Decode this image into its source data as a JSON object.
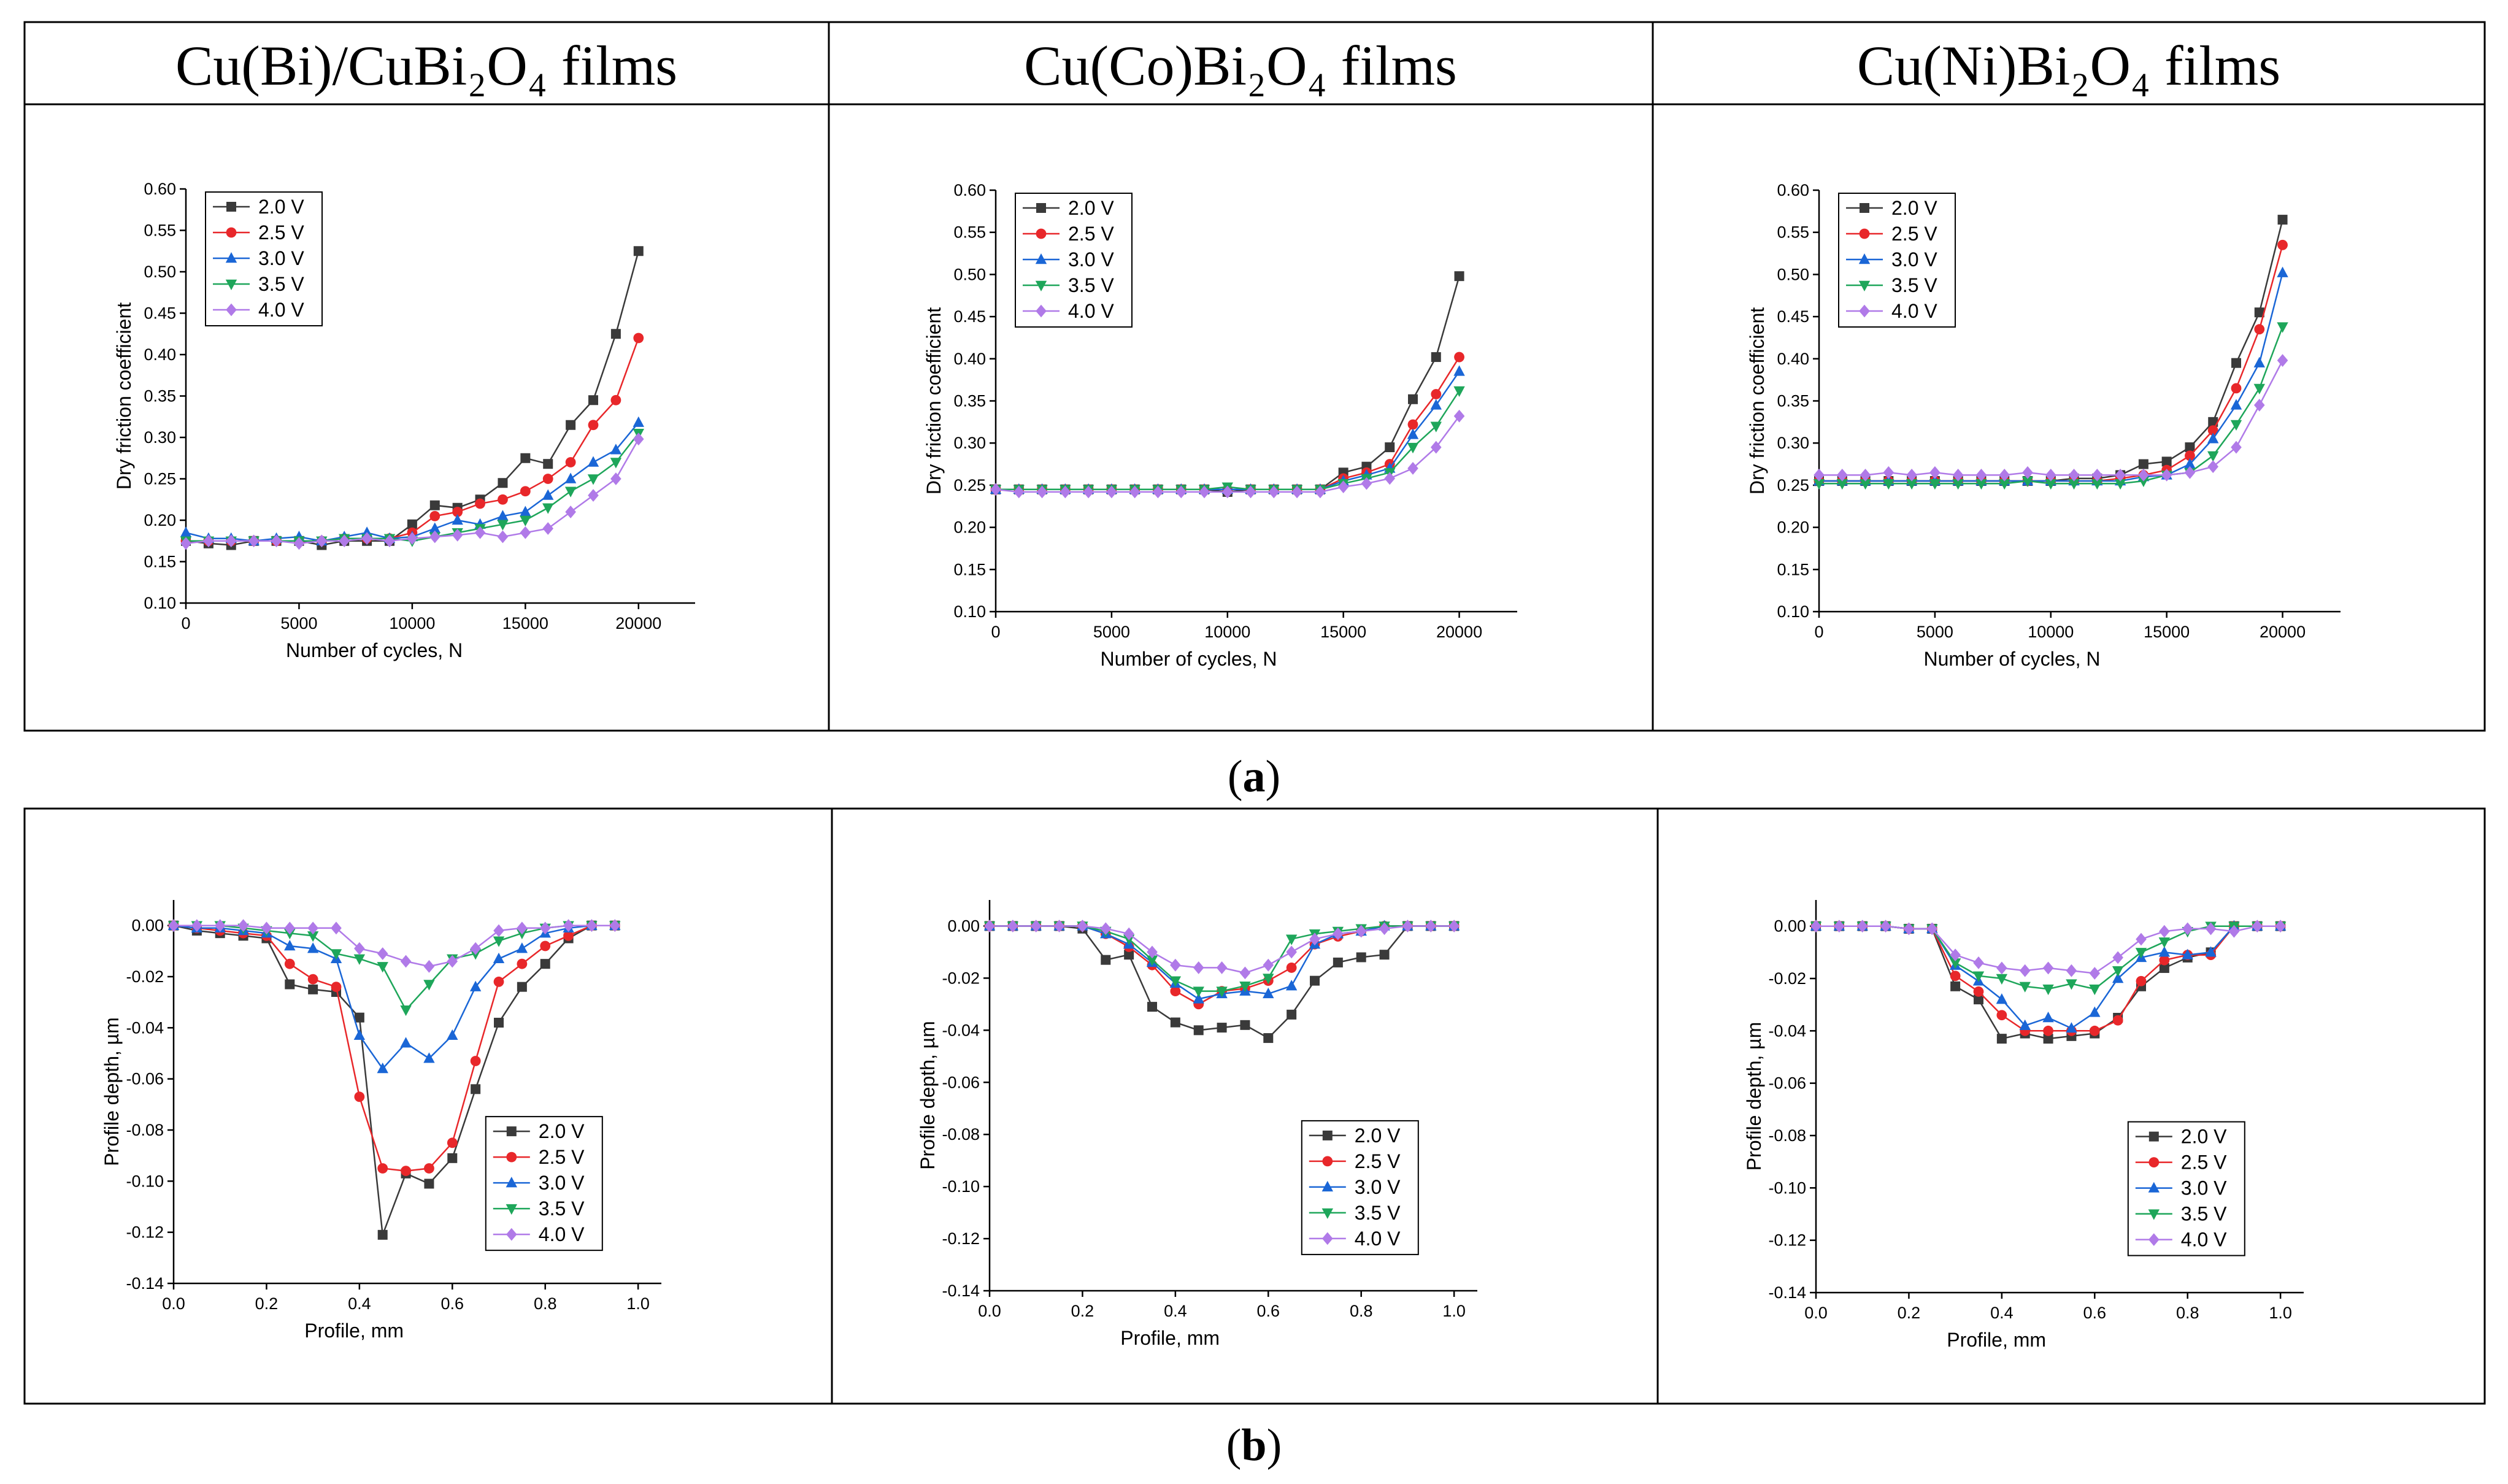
{
  "headers": [
    "Cu(Bi)/CuBi₂O₄ films",
    "Cu(Co)Bi₂O₄ films",
    "Cu(Ni)Bi₂O₄ films"
  ],
  "captions": {
    "a": "a",
    "b": "b"
  },
  "colors": {
    "2.0 V": "#3a3a3a",
    "2.5 V": "#e8272a",
    "3.0 V": "#1a66d6",
    "3.5 V": "#1ea65a",
    "4.0 V": "#b07ae8"
  },
  "chart_data": [
    {
      "id": "a1",
      "type": "line",
      "xlabel": "Number of cycles, N",
      "ylabel": "Dry friction coefficient",
      "xlim": [
        0,
        22500
      ],
      "ylim": [
        0.1,
        0.6
      ],
      "xticks": [
        0,
        5000,
        10000,
        15000,
        20000
      ],
      "yticks": [
        0.1,
        0.15,
        0.2,
        0.25,
        0.3,
        0.35,
        0.4,
        0.45,
        0.5,
        0.55,
        0.6
      ],
      "yformat": 2,
      "legend": "top-left",
      "x": [
        0,
        1000,
        2000,
        3000,
        4000,
        5000,
        6000,
        7000,
        8000,
        9000,
        10000,
        11000,
        12000,
        13000,
        14000,
        15000,
        16000,
        17000,
        18000,
        19000,
        20000
      ],
      "series": [
        {
          "name": "2.0 V",
          "values": [
            0.175,
            0.172,
            0.17,
            0.175,
            0.175,
            0.175,
            0.17,
            0.175,
            0.175,
            0.175,
            0.195,
            0.218,
            0.215,
            0.225,
            0.245,
            0.275,
            0.268,
            0.315,
            0.345,
            0.425,
            0.525
          ]
        },
        {
          "name": "2.5 V",
          "values": [
            0.175,
            0.175,
            0.175,
            0.175,
            0.175,
            0.175,
            0.175,
            0.178,
            0.178,
            0.178,
            0.185,
            0.205,
            0.21,
            0.22,
            0.225,
            0.235,
            0.25,
            0.27,
            0.315,
            0.345,
            0.42
          ]
        },
        {
          "name": "3.0 V",
          "values": [
            0.185,
            0.178,
            0.178,
            0.175,
            0.178,
            0.18,
            0.175,
            0.18,
            0.185,
            0.178,
            0.18,
            0.19,
            0.2,
            0.195,
            0.205,
            0.21,
            0.23,
            0.25,
            0.27,
            0.285,
            0.318
          ]
        },
        {
          "name": "3.5 V",
          "values": [
            0.175,
            0.175,
            0.175,
            0.175,
            0.175,
            0.175,
            0.175,
            0.178,
            0.178,
            0.178,
            0.175,
            0.18,
            0.185,
            0.19,
            0.195,
            0.2,
            0.215,
            0.235,
            0.25,
            0.27,
            0.305
          ]
        },
        {
          "name": "4.0 V",
          "values": [
            0.172,
            0.175,
            0.175,
            0.175,
            0.175,
            0.172,
            0.175,
            0.175,
            0.178,
            0.175,
            0.178,
            0.18,
            0.182,
            0.185,
            0.18,
            0.185,
            0.19,
            0.21,
            0.23,
            0.25,
            0.298
          ]
        }
      ]
    },
    {
      "id": "a2",
      "type": "line",
      "xlabel": "Number of cycles, N",
      "ylabel": "Dry friction coefficient",
      "xlim": [
        0,
        22500
      ],
      "ylim": [
        0.1,
        0.6
      ],
      "xticks": [
        0,
        5000,
        10000,
        15000,
        20000
      ],
      "yticks": [
        0.1,
        0.15,
        0.2,
        0.25,
        0.3,
        0.35,
        0.4,
        0.45,
        0.5,
        0.55,
        0.6
      ],
      "yformat": 2,
      "legend": "top-left",
      "x": [
        0,
        1000,
        2000,
        3000,
        4000,
        5000,
        6000,
        7000,
        8000,
        9000,
        10000,
        11000,
        12000,
        13000,
        14000,
        15000,
        16000,
        17000,
        18000,
        19000,
        20000
      ],
      "series": [
        {
          "name": "2.0 V",
          "values": [
            0.245,
            0.245,
            0.245,
            0.245,
            0.245,
            0.245,
            0.245,
            0.245,
            0.245,
            0.245,
            0.242,
            0.245,
            0.245,
            0.245,
            0.245,
            0.265,
            0.272,
            0.295,
            0.352,
            0.402,
            0.498
          ]
        },
        {
          "name": "2.5 V",
          "values": [
            0.245,
            0.245,
            0.245,
            0.245,
            0.245,
            0.245,
            0.245,
            0.245,
            0.245,
            0.245,
            0.245,
            0.245,
            0.245,
            0.245,
            0.245,
            0.258,
            0.265,
            0.275,
            0.322,
            0.358,
            0.402
          ]
        },
        {
          "name": "3.0 V",
          "values": [
            0.245,
            0.245,
            0.245,
            0.245,
            0.245,
            0.245,
            0.245,
            0.245,
            0.245,
            0.245,
            0.245,
            0.245,
            0.245,
            0.245,
            0.245,
            0.255,
            0.262,
            0.27,
            0.31,
            0.345,
            0.385
          ]
        },
        {
          "name": "3.5 V",
          "values": [
            0.245,
            0.245,
            0.245,
            0.245,
            0.245,
            0.245,
            0.245,
            0.245,
            0.245,
            0.245,
            0.248,
            0.245,
            0.245,
            0.245,
            0.245,
            0.252,
            0.258,
            0.265,
            0.295,
            0.32,
            0.362
          ]
        },
        {
          "name": "4.0 V",
          "values": [
            0.245,
            0.242,
            0.242,
            0.242,
            0.242,
            0.242,
            0.242,
            0.242,
            0.242,
            0.242,
            0.242,
            0.242,
            0.242,
            0.242,
            0.242,
            0.248,
            0.252,
            0.258,
            0.27,
            0.295,
            0.332
          ]
        }
      ]
    },
    {
      "id": "a3",
      "type": "line",
      "xlabel": "Number of cycles, N",
      "ylabel": "Dry friction coefficient",
      "xlim": [
        0,
        22500
      ],
      "ylim": [
        0.1,
        0.6
      ],
      "xticks": [
        0,
        5000,
        10000,
        15000,
        20000
      ],
      "yticks": [
        0.1,
        0.15,
        0.2,
        0.25,
        0.3,
        0.35,
        0.4,
        0.45,
        0.5,
        0.55,
        0.6
      ],
      "yformat": 2,
      "legend": "top-left",
      "x": [
        0,
        1000,
        2000,
        3000,
        4000,
        5000,
        6000,
        7000,
        8000,
        9000,
        10000,
        11000,
        12000,
        13000,
        14000,
        15000,
        16000,
        17000,
        18000,
        19000,
        20000
      ],
      "series": [
        {
          "name": "2.0 V",
          "values": [
            0.255,
            0.255,
            0.255,
            0.255,
            0.255,
            0.255,
            0.255,
            0.255,
            0.255,
            0.255,
            0.255,
            0.258,
            0.258,
            0.262,
            0.275,
            0.278,
            0.295,
            0.325,
            0.395,
            0.455,
            0.565
          ]
        },
        {
          "name": "2.5 V",
          "values": [
            0.255,
            0.255,
            0.255,
            0.255,
            0.255,
            0.255,
            0.255,
            0.255,
            0.255,
            0.255,
            0.255,
            0.255,
            0.255,
            0.258,
            0.262,
            0.268,
            0.285,
            0.315,
            0.365,
            0.435,
            0.535
          ]
        },
        {
          "name": "3.0 V",
          "values": [
            0.255,
            0.255,
            0.255,
            0.255,
            0.255,
            0.255,
            0.255,
            0.255,
            0.255,
            0.255,
            0.255,
            0.255,
            0.255,
            0.255,
            0.26,
            0.262,
            0.275,
            0.305,
            0.345,
            0.395,
            0.502
          ]
        },
        {
          "name": "3.5 V",
          "values": [
            0.252,
            0.252,
            0.252,
            0.252,
            0.252,
            0.252,
            0.252,
            0.252,
            0.252,
            0.255,
            0.252,
            0.252,
            0.252,
            0.252,
            0.255,
            0.262,
            0.265,
            0.285,
            0.322,
            0.365,
            0.438
          ]
        },
        {
          "name": "4.0 V",
          "values": [
            0.262,
            0.262,
            0.262,
            0.265,
            0.262,
            0.265,
            0.262,
            0.262,
            0.262,
            0.265,
            0.262,
            0.262,
            0.262,
            0.262,
            0.262,
            0.262,
            0.265,
            0.272,
            0.295,
            0.345,
            0.398
          ]
        }
      ]
    },
    {
      "id": "b1",
      "type": "line",
      "xlabel": "Profile, mm",
      "ylabel": "Profile depth, µm",
      "xlim": [
        0.0,
        1.05
      ],
      "ylim": [
        -0.14,
        0.01
      ],
      "xticks": [
        0.0,
        0.2,
        0.4,
        0.6,
        0.8,
        1.0
      ],
      "xformat": 1,
      "yticks": [
        0.0,
        -0.02,
        -0.04,
        -0.06,
        -0.08,
        -0.1,
        -0.12,
        -0.14
      ],
      "yformat": 2,
      "legend": "bottom-right",
      "x": [
        0.0,
        0.05,
        0.1,
        0.15,
        0.2,
        0.25,
        0.3,
        0.35,
        0.4,
        0.45,
        0.5,
        0.55,
        0.6,
        0.65,
        0.7,
        0.75,
        0.8,
        0.85,
        0.9,
        0.95
      ],
      "series": [
        {
          "name": "2.0 V",
          "values": [
            0.0,
            -0.002,
            -0.003,
            -0.004,
            -0.005,
            -0.023,
            -0.025,
            -0.026,
            -0.036,
            -0.121,
            -0.097,
            -0.101,
            -0.091,
            -0.064,
            -0.038,
            -0.024,
            -0.015,
            -0.005,
            0.0,
            0.0
          ]
        },
        {
          "name": "2.5 V",
          "values": [
            0.0,
            -0.001,
            -0.002,
            -0.003,
            -0.004,
            -0.015,
            -0.021,
            -0.024,
            -0.067,
            -0.095,
            -0.096,
            -0.095,
            -0.085,
            -0.053,
            -0.022,
            -0.015,
            -0.008,
            -0.004,
            0.0,
            0.0
          ]
        },
        {
          "name": "3.0 V",
          "values": [
            0.0,
            -0.001,
            -0.001,
            -0.002,
            -0.003,
            -0.008,
            -0.009,
            -0.013,
            -0.043,
            -0.056,
            -0.046,
            -0.052,
            -0.043,
            -0.024,
            -0.013,
            -0.009,
            -0.003,
            -0.001,
            0.0,
            0.0
          ]
        },
        {
          "name": "3.5 V",
          "values": [
            0.0,
            0.0,
            0.0,
            -0.001,
            -0.002,
            -0.003,
            -0.004,
            -0.011,
            -0.013,
            -0.016,
            -0.033,
            -0.023,
            -0.013,
            -0.011,
            -0.006,
            -0.003,
            -0.001,
            0.0,
            0.0,
            0.0
          ]
        },
        {
          "name": "4.0 V",
          "values": [
            0.0,
            0.0,
            0.0,
            0.0,
            -0.001,
            -0.001,
            -0.001,
            -0.001,
            -0.009,
            -0.011,
            -0.014,
            -0.016,
            -0.014,
            -0.009,
            -0.002,
            -0.001,
            -0.001,
            0.0,
            0.0,
            0.0
          ]
        }
      ]
    },
    {
      "id": "b2",
      "type": "line",
      "xlabel": "Profile, mm",
      "ylabel": "Profile depth, µm",
      "xlim": [
        0.0,
        1.05
      ],
      "ylim": [
        -0.14,
        0.01
      ],
      "xticks": [
        0.0,
        0.2,
        0.4,
        0.6,
        0.8,
        1.0
      ],
      "xformat": 1,
      "yticks": [
        0.0,
        -0.02,
        -0.04,
        -0.06,
        -0.08,
        -0.1,
        -0.12,
        -0.14
      ],
      "yformat": 2,
      "legend": "bottom-right",
      "x": [
        0.0,
        0.05,
        0.1,
        0.15,
        0.2,
        0.25,
        0.3,
        0.35,
        0.4,
        0.45,
        0.5,
        0.55,
        0.6,
        0.65,
        0.7,
        0.75,
        0.8,
        0.85,
        0.9,
        0.95,
        1.0
      ],
      "series": [
        {
          "name": "2.0 V",
          "values": [
            0.0,
            0.0,
            0.0,
            0.0,
            -0.001,
            -0.013,
            -0.011,
            -0.031,
            -0.037,
            -0.04,
            -0.039,
            -0.038,
            -0.043,
            -0.034,
            -0.021,
            -0.014,
            -0.012,
            -0.011,
            0.0,
            0.0,
            0.0
          ]
        },
        {
          "name": "2.5 V",
          "values": [
            0.0,
            0.0,
            0.0,
            0.0,
            0.0,
            -0.003,
            -0.008,
            -0.015,
            -0.025,
            -0.03,
            -0.025,
            -0.024,
            -0.021,
            -0.016,
            -0.007,
            -0.004,
            -0.002,
            0.0,
            0.0,
            0.0,
            0.0
          ]
        },
        {
          "name": "3.0 V",
          "values": [
            0.0,
            0.0,
            0.0,
            0.0,
            0.0,
            -0.003,
            -0.007,
            -0.014,
            -0.022,
            -0.028,
            -0.026,
            -0.025,
            -0.026,
            -0.023,
            -0.007,
            -0.003,
            -0.002,
            0.0,
            0.0,
            0.0,
            0.0
          ]
        },
        {
          "name": "3.5 V",
          "values": [
            0.0,
            0.0,
            0.0,
            0.0,
            0.0,
            -0.002,
            -0.005,
            -0.013,
            -0.021,
            -0.025,
            -0.025,
            -0.023,
            -0.02,
            -0.005,
            -0.003,
            -0.002,
            -0.001,
            0.0,
            0.0,
            0.0,
            0.0
          ]
        },
        {
          "name": "4.0 V",
          "values": [
            0.0,
            0.0,
            0.0,
            0.0,
            0.0,
            -0.001,
            -0.003,
            -0.01,
            -0.015,
            -0.016,
            -0.016,
            -0.018,
            -0.015,
            -0.01,
            -0.005,
            -0.003,
            -0.002,
            -0.001,
            0.0,
            0.0,
            0.0
          ]
        }
      ]
    },
    {
      "id": "b3",
      "type": "line",
      "xlabel": "Profile, mm",
      "ylabel": "Profile depth, µm",
      "xlim": [
        0.0,
        1.05
      ],
      "ylim": [
        -0.14,
        0.01
      ],
      "xticks": [
        0.0,
        0.2,
        0.4,
        0.6,
        0.8,
        1.0
      ],
      "xformat": 1,
      "yticks": [
        0.0,
        -0.02,
        -0.04,
        -0.06,
        -0.08,
        -0.1,
        -0.12,
        -0.14
      ],
      "yformat": 2,
      "legend": "bottom-right",
      "x": [
        0.0,
        0.05,
        0.1,
        0.15,
        0.2,
        0.25,
        0.3,
        0.35,
        0.4,
        0.45,
        0.5,
        0.55,
        0.6,
        0.65,
        0.7,
        0.75,
        0.8,
        0.85,
        0.9,
        0.95,
        1.0
      ],
      "series": [
        {
          "name": "2.0 V",
          "values": [
            0.0,
            0.0,
            0.0,
            0.0,
            -0.001,
            -0.001,
            -0.023,
            -0.028,
            -0.043,
            -0.041,
            -0.043,
            -0.042,
            -0.041,
            -0.035,
            -0.023,
            -0.016,
            -0.012,
            -0.01,
            0.0,
            0.0,
            0.0
          ]
        },
        {
          "name": "2.5 V",
          "values": [
            0.0,
            0.0,
            0.0,
            0.0,
            -0.001,
            -0.001,
            -0.019,
            -0.025,
            -0.034,
            -0.04,
            -0.04,
            -0.04,
            -0.04,
            -0.036,
            -0.021,
            -0.013,
            -0.011,
            -0.011,
            0.0,
            0.0,
            0.0
          ]
        },
        {
          "name": "3.0 V",
          "values": [
            0.0,
            0.0,
            0.0,
            0.0,
            -0.001,
            -0.001,
            -0.015,
            -0.021,
            -0.028,
            -0.038,
            -0.035,
            -0.039,
            -0.033,
            -0.02,
            -0.012,
            -0.01,
            -0.011,
            -0.01,
            0.0,
            0.0,
            0.0
          ]
        },
        {
          "name": "3.5 V",
          "values": [
            0.0,
            0.0,
            0.0,
            0.0,
            -0.001,
            -0.001,
            -0.014,
            -0.019,
            -0.02,
            -0.023,
            -0.024,
            -0.022,
            -0.024,
            -0.017,
            -0.01,
            -0.006,
            -0.002,
            0.0,
            0.0,
            0.0,
            0.0
          ]
        },
        {
          "name": "4.0 V",
          "values": [
            0.0,
            0.0,
            0.0,
            0.0,
            -0.001,
            -0.001,
            -0.011,
            -0.014,
            -0.016,
            -0.017,
            -0.016,
            -0.017,
            -0.018,
            -0.012,
            -0.005,
            -0.002,
            -0.001,
            -0.001,
            -0.002,
            0.0,
            0.0
          ]
        }
      ]
    }
  ]
}
